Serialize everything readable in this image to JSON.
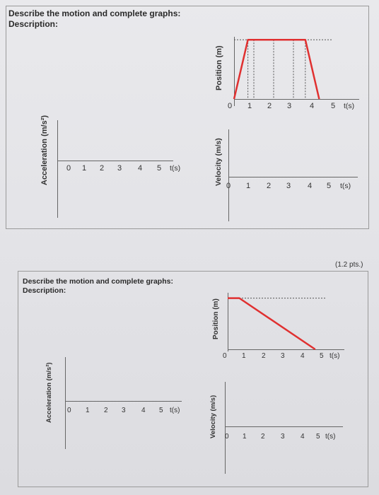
{
  "problem1": {
    "heading": "Describe the motion and complete graphs:",
    "description_label": "Description:",
    "acceleration_axis": "Acceleration (m/s²)",
    "position_axis": "Position (m)",
    "velocity_axis": "Velocity (m/s)",
    "ticks": [
      "0",
      "1",
      "2",
      "3",
      "4",
      "5",
      "t(s)"
    ]
  },
  "points_label": "(1.2 pts.)",
  "problem2": {
    "heading": "Describe the motion and complete graphs:",
    "description_label": "Description:",
    "acceleration_axis": "Acceleration (m/s²)",
    "position_axis": "Position (m)",
    "velocity_axis": "Velocity (m/s)",
    "ticks": [
      "0",
      "1",
      "2",
      "3",
      "4",
      "5",
      "t(s)"
    ]
  },
  "colors": {
    "graph_line": "#e03030",
    "axis": "#666666",
    "paper": "#e6e6e9"
  },
  "chart_data": [
    {
      "type": "line",
      "title": "",
      "xlabel": "t(s)",
      "ylabel": "Position (m)",
      "x": [
        0,
        0.7,
        3.6,
        4.3
      ],
      "y": [
        0,
        1,
        1,
        0
      ],
      "xlim": [
        0,
        5
      ],
      "ylim": [
        0,
        1.05
      ],
      "grid": false
    },
    {
      "type": "line",
      "title": "",
      "xlabel": "t(s)",
      "ylabel": "Position (m)",
      "x": [
        0,
        0.6,
        4.5
      ],
      "y": [
        1,
        1,
        0
      ],
      "xlim": [
        0,
        5
      ],
      "ylim": [
        0,
        1.05
      ],
      "grid": false
    }
  ]
}
